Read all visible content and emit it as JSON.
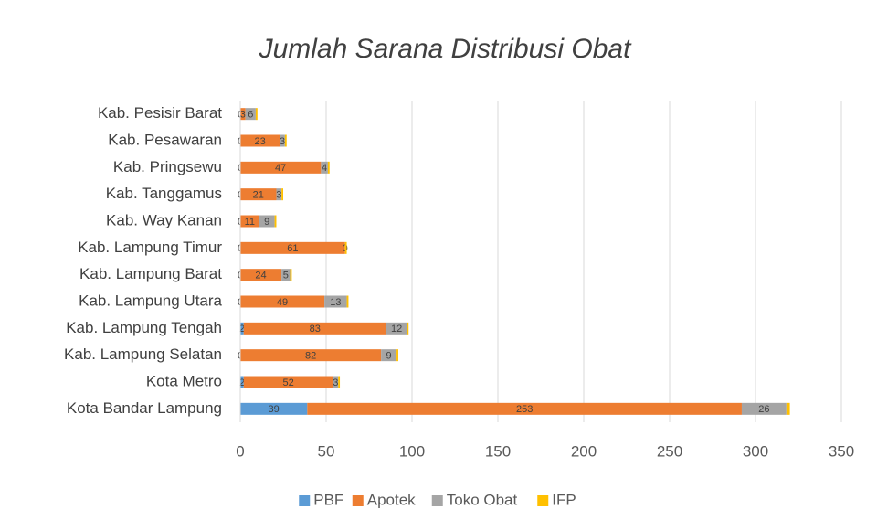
{
  "chart_data": {
    "type": "stacked_barh",
    "title": "Jumlah Sarana Distribusi Obat",
    "categories": [
      "Kota Bandar Lampung",
      "Kota Metro",
      "Kab. Lampung Selatan",
      "Kab. Lampung Tengah",
      "Kab. Lampung Utara",
      "Kab. Lampung Barat",
      "Kab. Lampung Timur",
      "Kab. Way Kanan",
      "Kab. Tanggamus",
      "Kab. Pringsewu",
      "Kab. Pesawaran",
      "Kab. Pesisir Barat"
    ],
    "series": [
      {
        "name": "PBF",
        "color": "#5b9bd5",
        "data_labels": true,
        "values": [
          39,
          2,
          0,
          2,
          0,
          0,
          0,
          0,
          0,
          0,
          0,
          0
        ]
      },
      {
        "name": "Apotek",
        "color": "#ed7d31",
        "data_labels": true,
        "values": [
          253,
          52,
          82,
          83,
          49,
          24,
          61,
          11,
          21,
          47,
          23,
          3
        ]
      },
      {
        "name": "Toko Obat",
        "color": "#a5a5a5",
        "data_labels": true,
        "values": [
          26,
          3,
          9,
          12,
          13,
          5,
          0,
          9,
          3,
          4,
          3,
          6
        ]
      },
      {
        "name": "IFP",
        "color": "#ffc000",
        "data_labels": false,
        "values": [
          2,
          1,
          1,
          1,
          1,
          1,
          1,
          1,
          1,
          1,
          1,
          1
        ]
      }
    ],
    "xlim": [
      0,
      350
    ],
    "xticks": [
      0,
      50,
      100,
      150,
      200,
      250,
      300,
      350
    ],
    "grid": true,
    "legend": "bottom"
  }
}
